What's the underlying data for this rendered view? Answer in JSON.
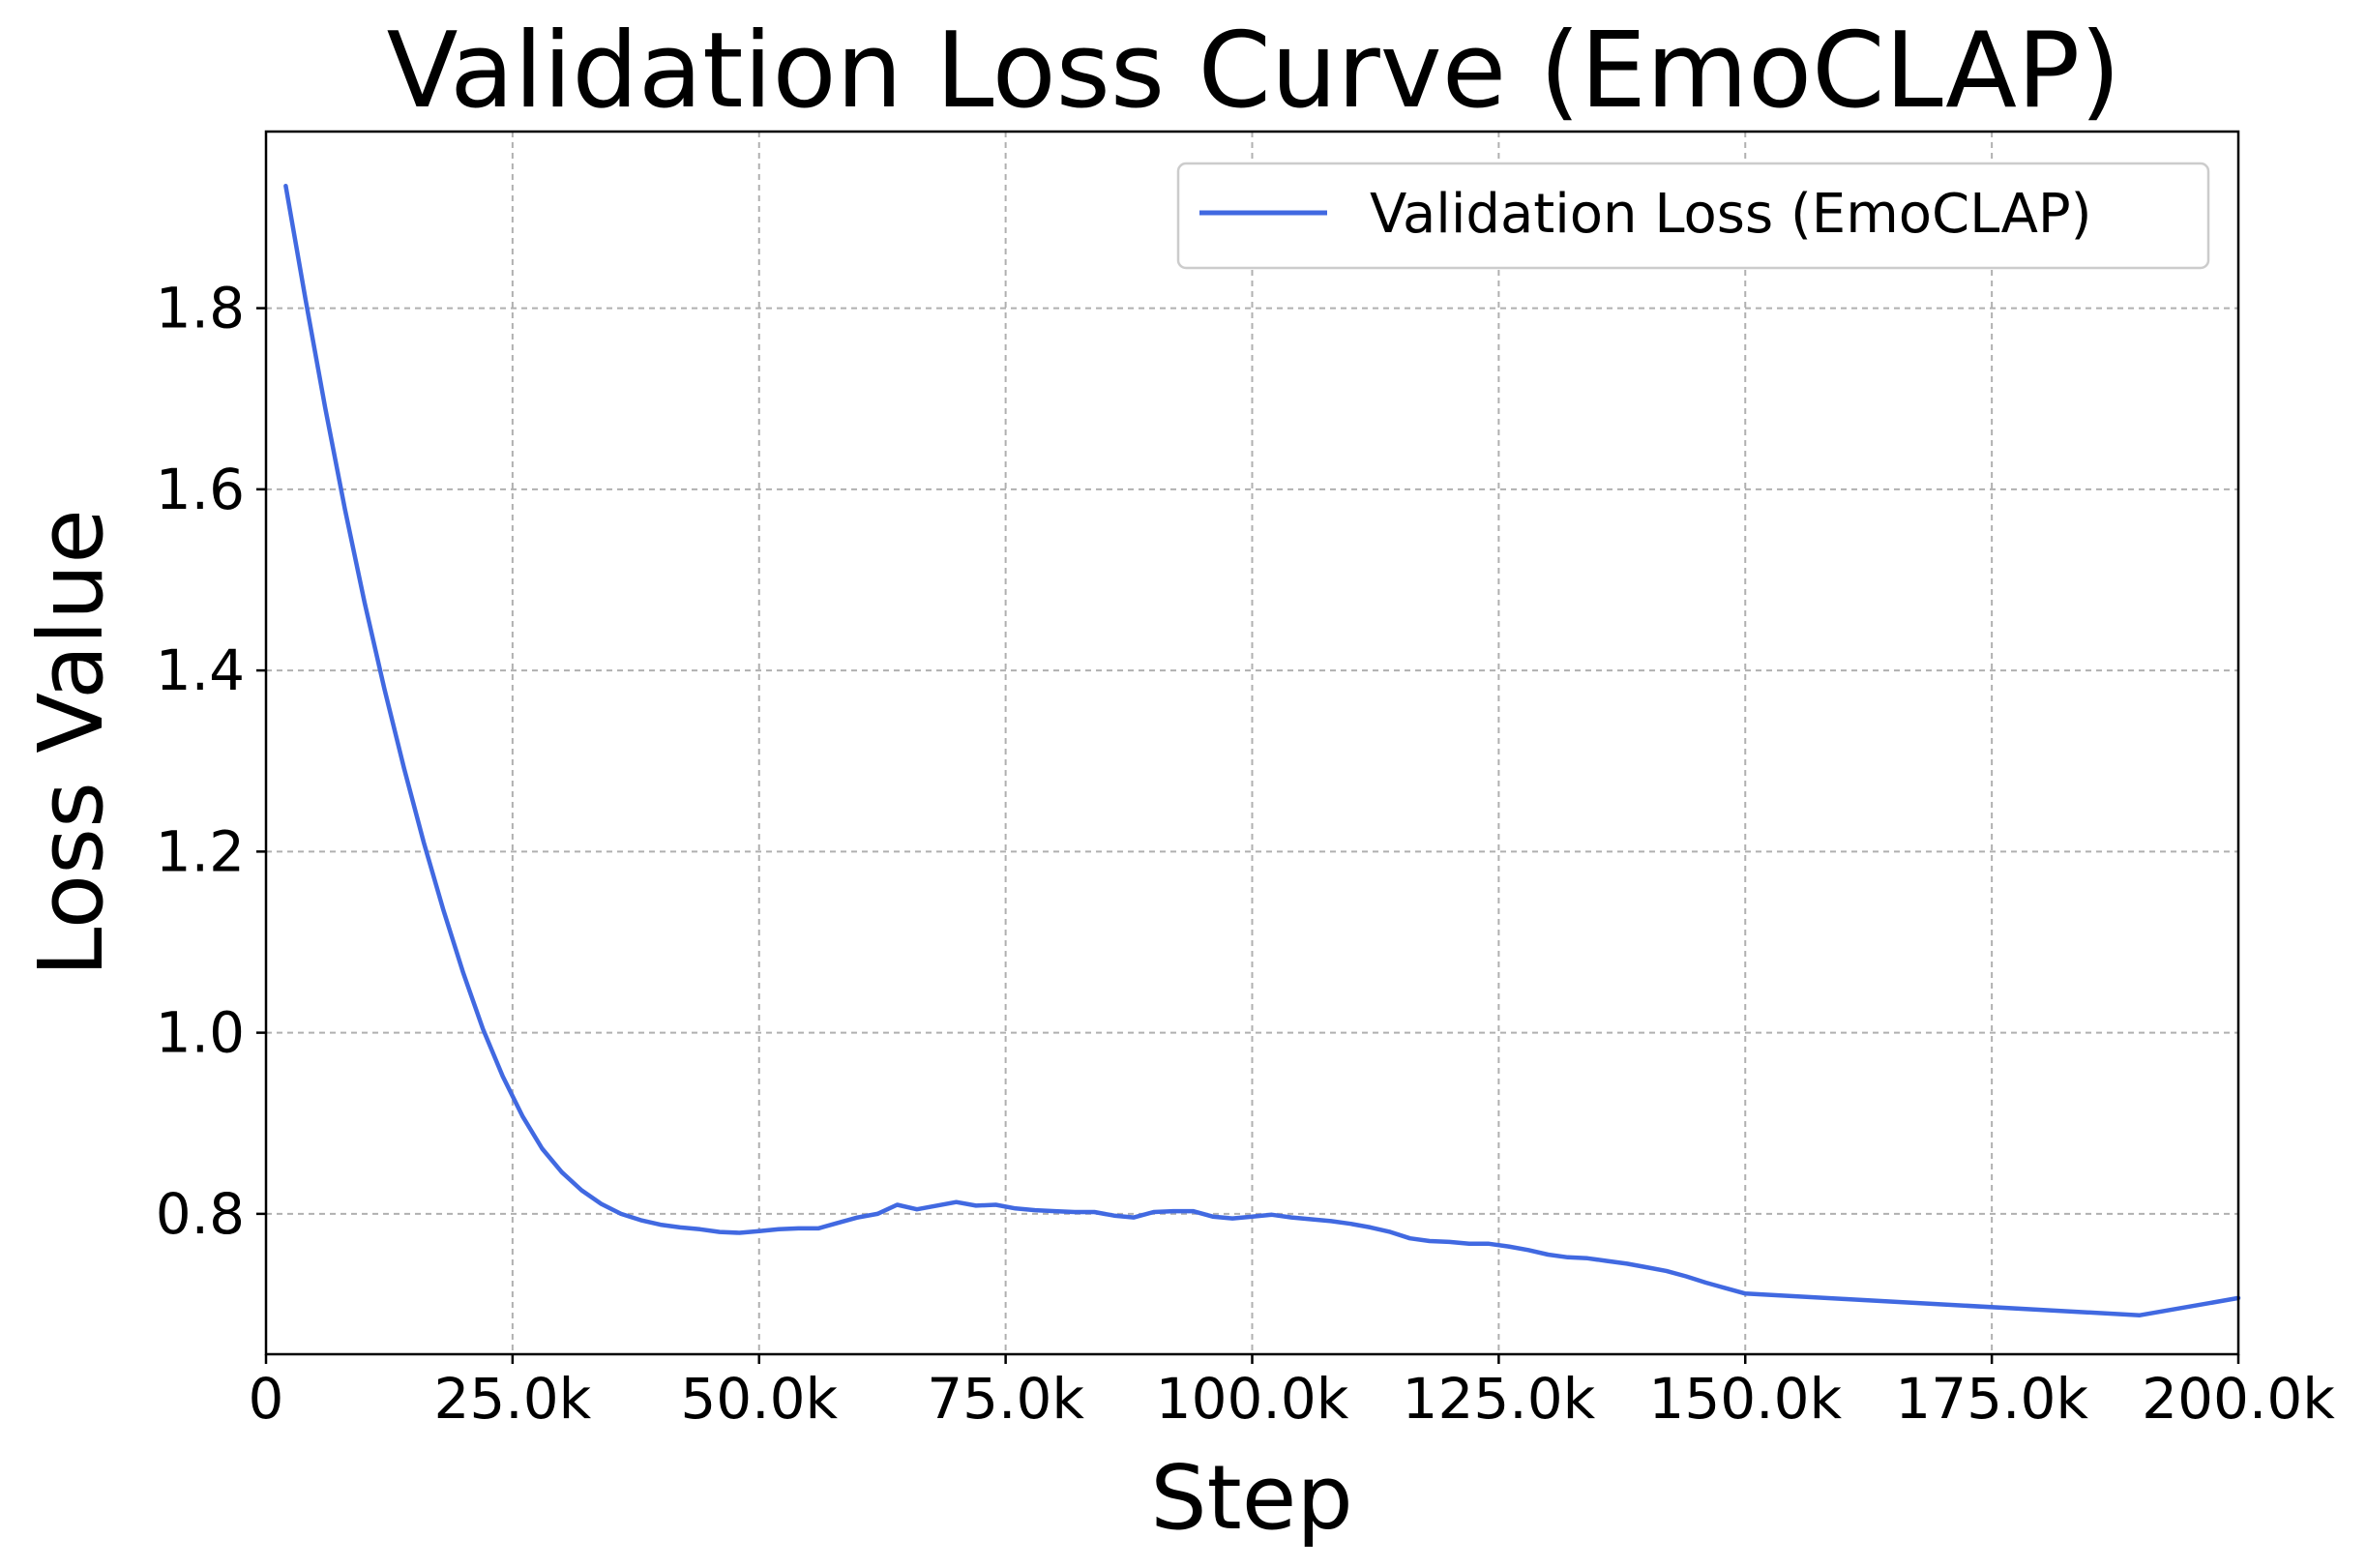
{
  "chart_data": {
    "type": "line",
    "title": "Validation Loss Curve (EmoCLAP)",
    "xlabel": "Step",
    "ylabel": "Loss Value",
    "xlim": [
      0,
      200000
    ],
    "ylim": [
      0.645,
      1.995
    ],
    "xticks": [
      0,
      25000,
      50000,
      75000,
      100000,
      125000,
      150000,
      175000,
      200000
    ],
    "xtick_labels": [
      "0",
      "25.0k",
      "50.0k",
      "75.0k",
      "100.0k",
      "125.0k",
      "150.0k",
      "175.0k",
      "200.0k"
    ],
    "yticks": [
      0.8,
      1.0,
      1.2,
      1.4,
      1.6,
      1.8
    ],
    "ytick_labels": [
      "0.8",
      "1.0",
      "1.2",
      "1.4",
      "1.6",
      "1.8"
    ],
    "grid": true,
    "legend_position": "top-right",
    "series": [
      {
        "name": "Validation Loss (EmoCLAP)",
        "color": "#4169e1",
        "x": [
          2000,
          4000,
          6000,
          8000,
          10000,
          12000,
          14000,
          16000,
          18000,
          20000,
          22000,
          24000,
          26000,
          28000,
          30000,
          32000,
          34000,
          36000,
          38000,
          40000,
          42000,
          44000,
          46000,
          48000,
          50000,
          52000,
          54000,
          56000,
          58000,
          60000,
          62000,
          64000,
          66000,
          68000,
          70000,
          72000,
          74000,
          76000,
          78000,
          80000,
          82000,
          84000,
          86000,
          88000,
          90000,
          92000,
          94000,
          96000,
          98000,
          100000,
          102000,
          104000,
          106000,
          108000,
          110000,
          112000,
          114000,
          116000,
          118000,
          120000,
          122000,
          124000,
          126000,
          128000,
          130000,
          132000,
          134000,
          136000,
          138000,
          140000,
          142000,
          144000,
          146000,
          148000,
          150000,
          160000,
          170000,
          180000,
          190000,
          200000
        ],
        "y": [
          1.935,
          1.81,
          1.69,
          1.578,
          1.475,
          1.38,
          1.292,
          1.21,
          1.135,
          1.066,
          1.004,
          0.952,
          0.908,
          0.872,
          0.846,
          0.826,
          0.811,
          0.8,
          0.793,
          0.788,
          0.785,
          0.783,
          0.78,
          0.779,
          0.781,
          0.783,
          0.784,
          0.784,
          0.79,
          0.796,
          0.8,
          0.81,
          0.805,
          0.809,
          0.813,
          0.809,
          0.81,
          0.806,
          0.804,
          0.803,
          0.802,
          0.802,
          0.798,
          0.796,
          0.802,
          0.803,
          0.803,
          0.797,
          0.795,
          0.797,
          0.799,
          0.796,
          0.794,
          0.792,
          0.789,
          0.785,
          0.78,
          0.773,
          0.77,
          0.769,
          0.767,
          0.767,
          0.764,
          0.76,
          0.755,
          0.752,
          0.751,
          0.748,
          0.745,
          0.741,
          0.737,
          0.731,
          0.724,
          0.718,
          0.712,
          0.706,
          0.7,
          0.694,
          0.688,
          0.707
        ]
      }
    ]
  }
}
